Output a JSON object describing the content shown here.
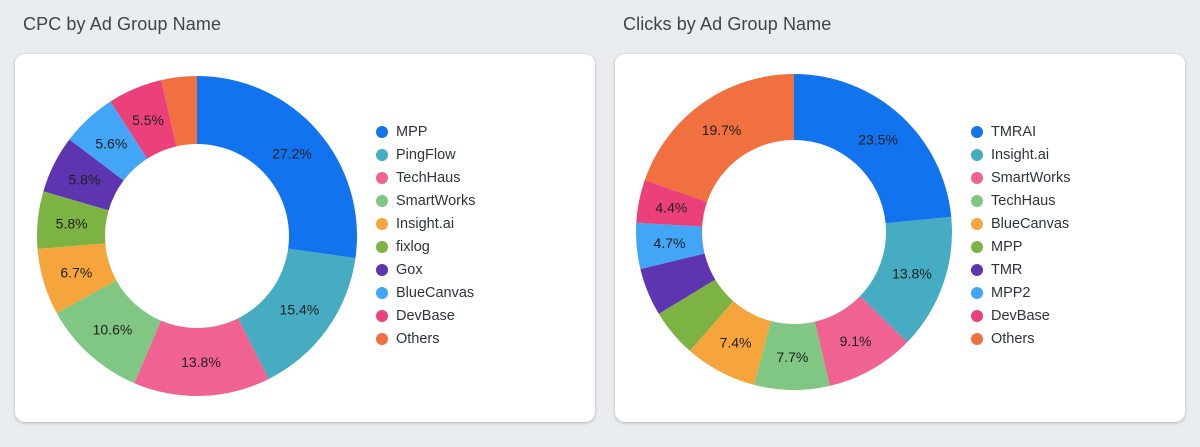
{
  "chart_data": [
    {
      "type": "pie",
      "title": "CPC by Ad Group Name",
      "categories": [
        "Others",
        "DevBase",
        "BlueCanvas",
        "Gox",
        "fixlog",
        "Insight.ai",
        "SmartWorks",
        "TechHaus",
        "PingFlow",
        "MPP"
      ],
      "values": [
        3.6,
        5.5,
        5.6,
        5.8,
        5.8,
        6.7,
        10.6,
        13.8,
        15.4,
        27.2
      ],
      "labels": [
        "",
        "5.5%",
        "5.6%",
        "5.8%",
        "5.8%",
        "6.7%",
        "10.6%",
        "13.8%",
        "15.4%",
        "27.2%"
      ],
      "colors": [
        "#f07040",
        "#ec407a",
        "#42a5f5",
        "#5e35b1",
        "#7cb342",
        "#f6a53c",
        "#81c784",
        "#f06292",
        "#46acc2",
        "#1173ee"
      ],
      "legend": [
        "MPP",
        "PingFlow",
        "TechHaus",
        "SmartWorks",
        "Insight.ai",
        "fixlog",
        "Gox",
        "BlueCanvas",
        "DevBase",
        "Others"
      ],
      "legend_colors": [
        "#1173ee",
        "#46acc2",
        "#f06292",
        "#81c784",
        "#f6a53c",
        "#7cb342",
        "#5e35b1",
        "#42a5f5",
        "#ec407a",
        "#f07040"
      ],
      "legend_position": "right"
    },
    {
      "type": "pie",
      "title": "Clicks by Ad Group Name",
      "categories": [
        "Others",
        "DevBase",
        "MPP2",
        "TMR",
        "MPP",
        "BlueCanvas",
        "TechHaus",
        "SmartWorks",
        "Insight.ai",
        "TMRAI"
      ],
      "values": [
        19.7,
        4.4,
        4.7,
        4.9,
        4.9,
        7.4,
        7.7,
        9.1,
        13.8,
        23.5
      ],
      "labels": [
        "19.7%",
        "4.4%",
        "4.7%",
        "",
        "",
        "7.4%",
        "7.7%",
        "9.1%",
        "13.8%",
        "23.5%"
      ],
      "colors": [
        "#f07040",
        "#ec407a",
        "#42a5f5",
        "#5e35b1",
        "#7cb342",
        "#f6a53c",
        "#81c784",
        "#f06292",
        "#46acc2",
        "#1173ee"
      ],
      "legend": [
        "TMRAI",
        "Insight.ai",
        "SmartWorks",
        "TechHaus",
        "BlueCanvas",
        "MPP",
        "TMR",
        "MPP2",
        "DevBase",
        "Others"
      ],
      "legend_colors": [
        "#1173ee",
        "#46acc2",
        "#f06292",
        "#81c784",
        "#f6a53c",
        "#7cb342",
        "#5e35b1",
        "#42a5f5",
        "#ec407a",
        "#f07040"
      ],
      "legend_position": "right"
    }
  ]
}
